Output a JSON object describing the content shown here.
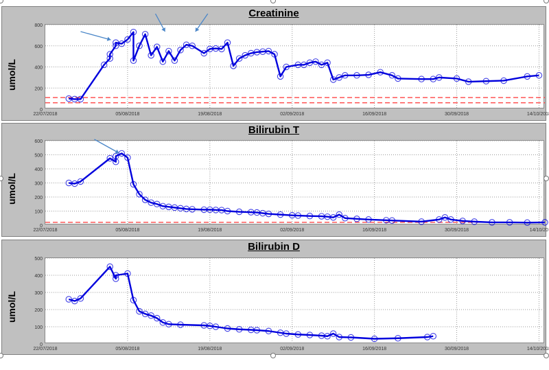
{
  "chart_data": [
    {
      "type": "line",
      "title": "Creatinine",
      "ylabel": "umol/L",
      "xlabel": "",
      "ylim": [
        0,
        800
      ],
      "yticks": [
        0,
        200,
        400,
        600,
        800
      ],
      "xlim": [
        "2018-07-22",
        "2018-10-15"
      ],
      "xticks": [
        "22/07/2018",
        "05/08/2018",
        "19/08/2018",
        "02/09/2018",
        "16/09/2018",
        "30/09/2018",
        "14/10/2018"
      ],
      "xtick_dates": [
        "2018-07-22",
        "2018-08-05",
        "2018-08-19",
        "2018-09-02",
        "2018-09-16",
        "2018-09-30",
        "2018-10-14"
      ],
      "grid": true,
      "reference_lines": [
        110,
        60
      ],
      "reference_color": "#ff3333",
      "series_color": "#0000dd",
      "annotation_arrows": 3,
      "points": [
        [
          "2018-07-26",
          100
        ],
        [
          "2018-07-27",
          95
        ],
        [
          "2018-07-28",
          95
        ],
        [
          "2018-08-01",
          420
        ],
        [
          "2018-08-02",
          480
        ],
        [
          "2018-08-02",
          520
        ],
        [
          "2018-08-03",
          600
        ],
        [
          "2018-08-03",
          630
        ],
        [
          "2018-08-04",
          620
        ],
        [
          "2018-08-05",
          660
        ],
        [
          "2018-08-06",
          730
        ],
        [
          "2018-08-06",
          460
        ],
        [
          "2018-08-07",
          600
        ],
        [
          "2018-08-08",
          710
        ],
        [
          "2018-08-09",
          510
        ],
        [
          "2018-08-10",
          590
        ],
        [
          "2018-08-11",
          450
        ],
        [
          "2018-08-12",
          550
        ],
        [
          "2018-08-13",
          460
        ],
        [
          "2018-08-14",
          560
        ],
        [
          "2018-08-15",
          610
        ],
        [
          "2018-08-16",
          600
        ],
        [
          "2018-08-18",
          530
        ],
        [
          "2018-08-19",
          570
        ],
        [
          "2018-08-20",
          575
        ],
        [
          "2018-08-21",
          570
        ],
        [
          "2018-08-22",
          630
        ],
        [
          "2018-08-23",
          410
        ],
        [
          "2018-08-24",
          480
        ],
        [
          "2018-08-25",
          510
        ],
        [
          "2018-08-26",
          530
        ],
        [
          "2018-08-27",
          540
        ],
        [
          "2018-08-28",
          545
        ],
        [
          "2018-08-29",
          550
        ],
        [
          "2018-08-30",
          520
        ],
        [
          "2018-08-31",
          310
        ],
        [
          "2018-09-01",
          400
        ],
        [
          "2018-09-03",
          420
        ],
        [
          "2018-09-04",
          420
        ],
        [
          "2018-09-05",
          440
        ],
        [
          "2018-09-06",
          450
        ],
        [
          "2018-09-07",
          420
        ],
        [
          "2018-09-08",
          440
        ],
        [
          "2018-09-09",
          280
        ],
        [
          "2018-09-10",
          300
        ],
        [
          "2018-09-11",
          320
        ],
        [
          "2018-09-13",
          320
        ],
        [
          "2018-09-15",
          325
        ],
        [
          "2018-09-17",
          350
        ],
        [
          "2018-09-19",
          320
        ],
        [
          "2018-09-20",
          290
        ],
        [
          "2018-09-24",
          285
        ],
        [
          "2018-09-26",
          285
        ],
        [
          "2018-09-27",
          300
        ],
        [
          "2018-09-30",
          290
        ],
        [
          "2018-10-02",
          260
        ],
        [
          "2018-10-05",
          265
        ],
        [
          "2018-10-08",
          270
        ],
        [
          "2018-10-12",
          310
        ],
        [
          "2018-10-14",
          320
        ]
      ]
    },
    {
      "type": "line",
      "title": "Bilirubin T",
      "ylabel": "umol/L",
      "xlabel": "",
      "ylim": [
        0,
        600
      ],
      "yticks": [
        0,
        100,
        200,
        300,
        400,
        500,
        600
      ],
      "xlim": [
        "2018-07-22",
        "2018-10-15"
      ],
      "xticks": [
        "22/07/2018",
        "05/08/2018",
        "19/08/2018",
        "02/09/2018",
        "16/09/2018",
        "30/09/2018",
        "14/10/20"
      ],
      "xtick_dates": [
        "2018-07-22",
        "2018-08-05",
        "2018-08-19",
        "2018-09-02",
        "2018-09-16",
        "2018-09-30",
        "2018-10-14"
      ],
      "grid": true,
      "reference_lines": [
        20
      ],
      "reference_color": "#ff3333",
      "series_color": "#0000dd",
      "annotation_arrows": 1,
      "points": [
        [
          "2018-07-26",
          300
        ],
        [
          "2018-07-27",
          295
        ],
        [
          "2018-07-28",
          310
        ],
        [
          "2018-08-02",
          475
        ],
        [
          "2018-08-03",
          450
        ],
        [
          "2018-08-03",
          490
        ],
        [
          "2018-08-04",
          510
        ],
        [
          "2018-08-05",
          480
        ],
        [
          "2018-08-06",
          290
        ],
        [
          "2018-08-07",
          220
        ],
        [
          "2018-08-08",
          180
        ],
        [
          "2018-08-09",
          160
        ],
        [
          "2018-08-10",
          150
        ],
        [
          "2018-08-11",
          135
        ],
        [
          "2018-08-12",
          130
        ],
        [
          "2018-08-13",
          125
        ],
        [
          "2018-08-14",
          120
        ],
        [
          "2018-08-15",
          115
        ],
        [
          "2018-08-16",
          113
        ],
        [
          "2018-08-18",
          110
        ],
        [
          "2018-08-19",
          110
        ],
        [
          "2018-08-20",
          108
        ],
        [
          "2018-08-21",
          107
        ],
        [
          "2018-08-22",
          100
        ],
        [
          "2018-08-24",
          95
        ],
        [
          "2018-08-26",
          92
        ],
        [
          "2018-08-27",
          90
        ],
        [
          "2018-08-28",
          85
        ],
        [
          "2018-08-29",
          80
        ],
        [
          "2018-08-31",
          75
        ],
        [
          "2018-09-02",
          70
        ],
        [
          "2018-09-03",
          68
        ],
        [
          "2018-09-05",
          65
        ],
        [
          "2018-09-07",
          63
        ],
        [
          "2018-09-08",
          60
        ],
        [
          "2018-09-09",
          55
        ],
        [
          "2018-09-10",
          75
        ],
        [
          "2018-09-11",
          50
        ],
        [
          "2018-09-13",
          45
        ],
        [
          "2018-09-15",
          40
        ],
        [
          "2018-09-18",
          35
        ],
        [
          "2018-09-19",
          33
        ],
        [
          "2018-09-24",
          25
        ],
        [
          "2018-09-27",
          40
        ],
        [
          "2018-09-28",
          55
        ],
        [
          "2018-09-29",
          40
        ],
        [
          "2018-10-01",
          30
        ],
        [
          "2018-10-03",
          25
        ],
        [
          "2018-10-06",
          20
        ],
        [
          "2018-10-09",
          20
        ],
        [
          "2018-10-12",
          18
        ],
        [
          "2018-10-15",
          20
        ]
      ]
    },
    {
      "type": "line",
      "title": "Bilirubin D",
      "ylabel": "umol/L",
      "xlabel": "",
      "ylim": [
        0,
        500
      ],
      "yticks": [
        0,
        100,
        200,
        300,
        400,
        500
      ],
      "xlim": [
        "2018-07-22",
        "2018-10-15"
      ],
      "xticks": [
        "22/07/2018",
        "05/08/2018",
        "19/08/2018",
        "02/09/2018",
        "16/09/2018",
        "30/09/2018",
        "14/10/2018"
      ],
      "xtick_dates": [
        "2018-07-22",
        "2018-08-05",
        "2018-08-19",
        "2018-09-02",
        "2018-09-16",
        "2018-09-30",
        "2018-10-14"
      ],
      "grid": true,
      "reference_lines": [],
      "reference_color": "#ff3333",
      "series_color": "#0000dd",
      "annotation_arrows": 0,
      "points": [
        [
          "2018-07-26",
          260
        ],
        [
          "2018-07-27",
          250
        ],
        [
          "2018-07-28",
          265
        ],
        [
          "2018-08-02",
          450
        ],
        [
          "2018-08-03",
          380
        ],
        [
          "2018-08-03",
          400
        ],
        [
          "2018-08-05",
          410
        ],
        [
          "2018-08-06",
          255
        ],
        [
          "2018-08-07",
          190
        ],
        [
          "2018-08-08",
          175
        ],
        [
          "2018-08-09",
          165
        ],
        [
          "2018-08-10",
          150
        ],
        [
          "2018-08-11",
          125
        ],
        [
          "2018-08-12",
          115
        ],
        [
          "2018-08-14",
          112
        ],
        [
          "2018-08-18",
          108
        ],
        [
          "2018-08-19",
          105
        ],
        [
          "2018-08-20",
          100
        ],
        [
          "2018-08-22",
          90
        ],
        [
          "2018-08-24",
          85
        ],
        [
          "2018-08-26",
          82
        ],
        [
          "2018-08-27",
          80
        ],
        [
          "2018-08-29",
          75
        ],
        [
          "2018-08-31",
          65
        ],
        [
          "2018-09-01",
          60
        ],
        [
          "2018-09-03",
          55
        ],
        [
          "2018-09-05",
          52
        ],
        [
          "2018-09-07",
          48
        ],
        [
          "2018-09-08",
          45
        ],
        [
          "2018-09-09",
          60
        ],
        [
          "2018-09-10",
          40
        ],
        [
          "2018-09-12",
          38
        ],
        [
          "2018-09-16",
          30
        ],
        [
          "2018-09-20",
          33
        ],
        [
          "2018-09-25",
          40
        ],
        [
          "2018-09-26",
          45
        ]
      ]
    }
  ]
}
